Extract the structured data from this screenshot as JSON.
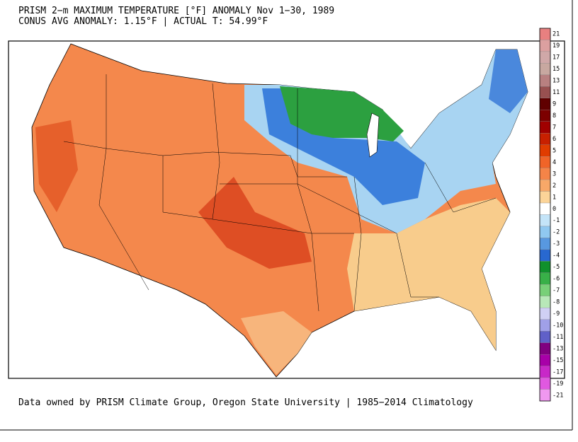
{
  "header": {
    "title": "PRISM 2−m MAXIMUM TEMPERATURE [°F] ANOMALY Nov 1−30, 1989",
    "subtitle": "CONUS AVG ANOMALY: 1.15°F | ACTUAL T: 54.99°F"
  },
  "footer": "Data owned by PRISM Climate Group, Oregon State University | 1985−2014 Climatology",
  "colorbar": {
    "ticks": [
      21,
      19,
      17,
      15,
      13,
      11,
      9,
      8,
      7,
      6,
      5,
      4,
      3,
      2,
      1,
      0,
      -1,
      -2,
      -3,
      -4,
      -5,
      -6,
      -7,
      -8,
      -9,
      -10,
      -11,
      -13,
      -15,
      -17,
      -19,
      -21
    ],
    "colors": [
      "#e88080",
      "#dca0a0",
      "#d0a8a8",
      "#c8a8a0",
      "#b88080",
      "#985050",
      "#600000",
      "#7c0000",
      "#a00000",
      "#c82000",
      "#e03c00",
      "#f06428",
      "#f48448",
      "#f8a868",
      "#fcd498",
      "#ffffff",
      "#c4e4f8",
      "#90c8f0",
      "#5898e0",
      "#2868d0",
      "#10902c",
      "#38b048",
      "#78d078",
      "#b8e8b8",
      "#d0d0f4",
      "#a0a0e8",
      "#6060c8",
      "#800080",
      "#a800a8",
      "#c828c8",
      "#e058e0",
      "#f098f0"
    ]
  }
}
